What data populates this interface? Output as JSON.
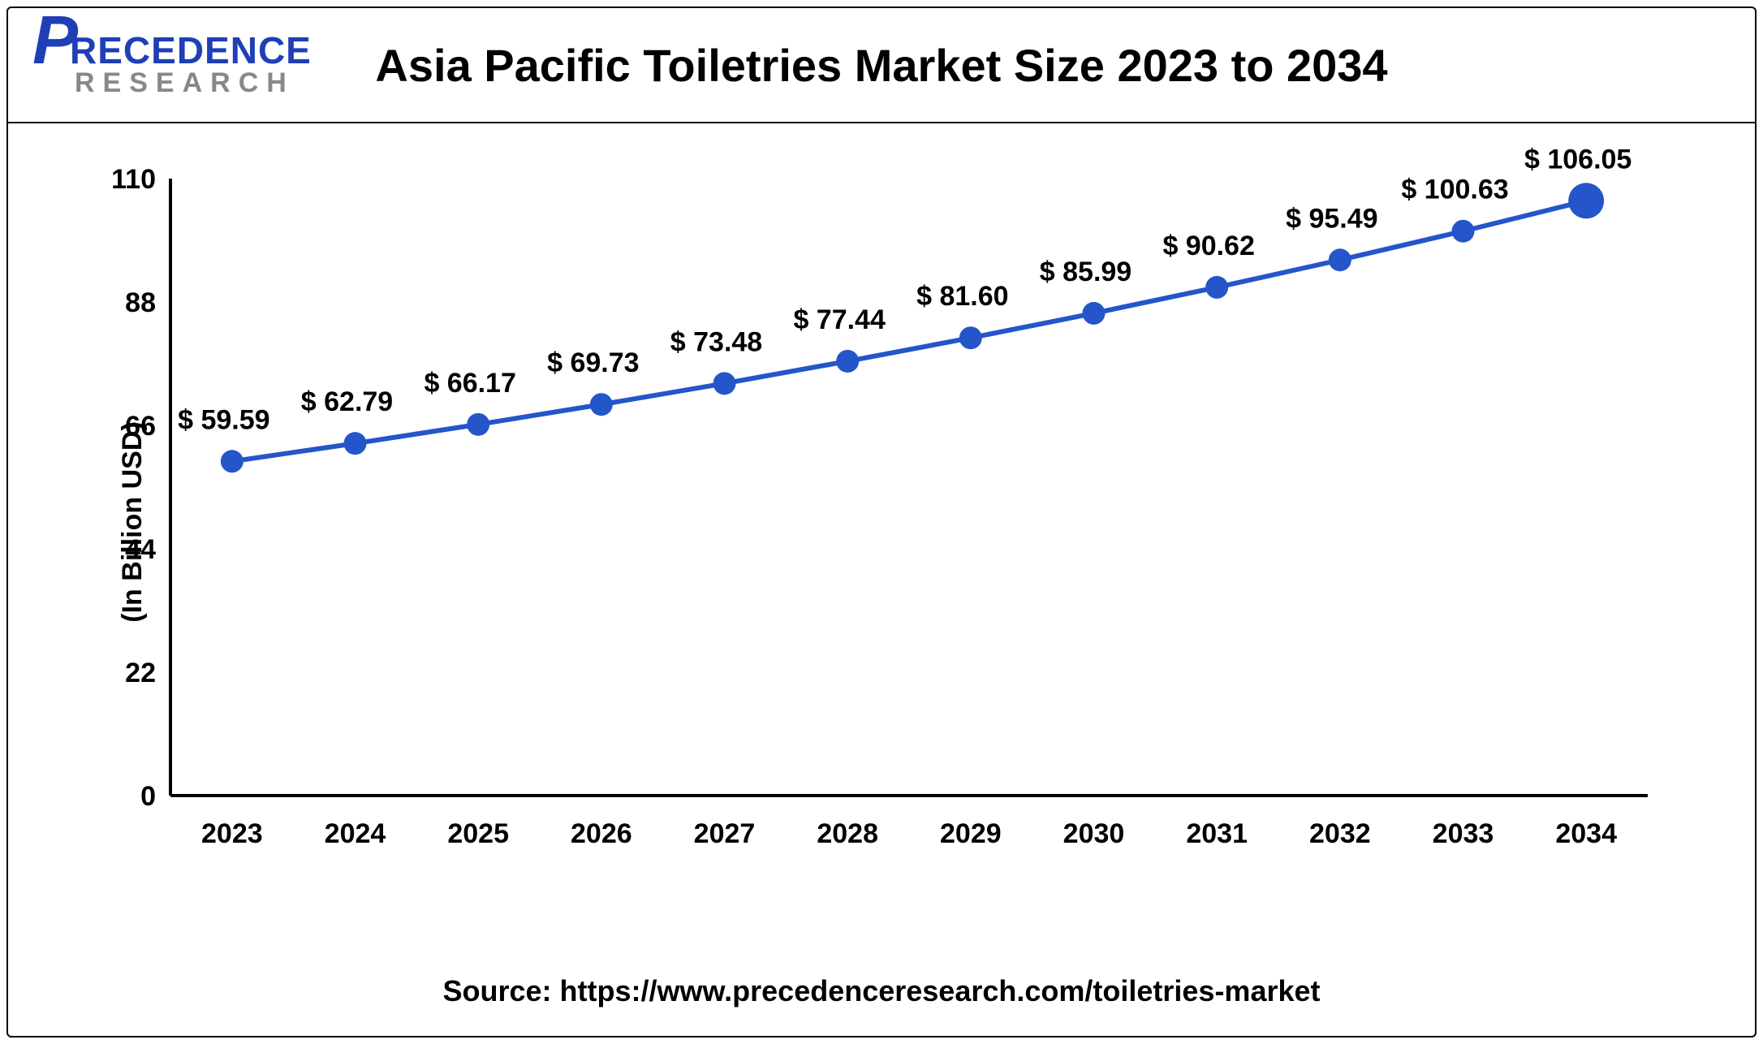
{
  "logo": {
    "p": "P",
    "brand_rest": "RECEDENCE",
    "sub": "RESEARCH",
    "brand_color": "#1e3fb5",
    "sub_color": "#888888"
  },
  "title": {
    "text": "Asia Pacific Toiletries Market Size 2023 to 2034",
    "fontsize": 56,
    "color": "#000000"
  },
  "chart": {
    "type": "line",
    "categories": [
      "2023",
      "2024",
      "2025",
      "2026",
      "2027",
      "2028",
      "2029",
      "2030",
      "2031",
      "2032",
      "2033",
      "2034"
    ],
    "values": [
      59.59,
      62.79,
      66.17,
      69.73,
      73.48,
      77.44,
      81.6,
      85.99,
      90.62,
      95.49,
      100.63,
      106.05
    ],
    "ylim": [
      0,
      110
    ],
    "ytick_step": 22,
    "yticks": [
      "0",
      "22",
      "44",
      "66",
      "88",
      "110"
    ],
    "line_color": "#2456c9",
    "line_width": 6,
    "marker_color": "#2456c9",
    "marker_radius": 14,
    "last_marker_radius": 22,
    "axis_color": "#000000",
    "axis_width": 4,
    "background_color": "#ffffff",
    "xtick_fontsize": 34,
    "ytick_fontsize": 34,
    "data_label_fontsize": 34,
    "data_label_prefix": "$ "
  },
  "yaxis_label": {
    "text": "(In Billion USD)",
    "fontsize": 34
  },
  "source": {
    "text": "Source: https://www.precedenceresearch.com/toiletries-market",
    "fontsize": 36
  }
}
